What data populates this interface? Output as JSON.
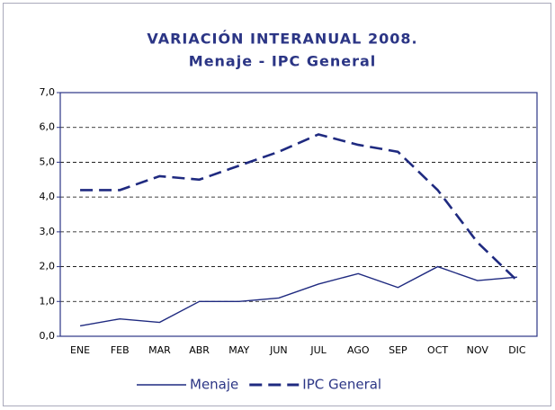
{
  "chart_data": {
    "type": "line",
    "title": "VARIACIÓN INTERANUAL 2008.",
    "subtitle": "Menaje - IPC General",
    "categories": [
      "ENE",
      "FEB",
      "MAR",
      "ABR",
      "MAY",
      "JUN",
      "JUL",
      "AGO",
      "SEP",
      "OCT",
      "NOV",
      "DIC"
    ],
    "series": [
      {
        "name": "Menaje",
        "color": "#1f2a80",
        "dash": false,
        "values": [
          0.3,
          0.5,
          0.4,
          1.0,
          1.0,
          1.1,
          1.5,
          1.8,
          1.4,
          2.0,
          1.6,
          1.7
        ]
      },
      {
        "name": "IPC General",
        "color": "#1f2a80",
        "dash": true,
        "values": [
          4.2,
          4.2,
          4.6,
          4.5,
          4.9,
          5.3,
          5.8,
          5.5,
          5.3,
          4.2,
          2.7,
          1.6
        ]
      }
    ],
    "ylim": [
      0,
      7
    ],
    "yticks": [
      {
        "value": 0,
        "label": "0,0"
      },
      {
        "value": 1,
        "label": "1,0"
      },
      {
        "value": 2,
        "label": "2,0"
      },
      {
        "value": 3,
        "label": "3,0"
      },
      {
        "value": 4,
        "label": "4,0"
      },
      {
        "value": 5,
        "label": "5,0"
      },
      {
        "value": 6,
        "label": "6,0"
      },
      {
        "value": 7,
        "label": "7,0"
      }
    ],
    "grid": true,
    "legend": "bottom"
  }
}
